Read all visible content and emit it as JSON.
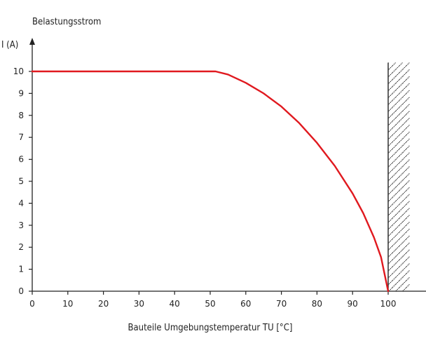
{
  "chart_data": {
    "type": "line",
    "title": "Belastungsstrom",
    "ylabel": "I (A)",
    "xlabel": "Bauteile Umgebungstemperatur TU [°C]",
    "xlim": [
      0,
      107
    ],
    "ylim": [
      0,
      10.7
    ],
    "x_ticks": [
      0,
      10,
      20,
      30,
      40,
      50,
      60,
      70,
      80,
      90,
      100
    ],
    "y_ticks": [
      0,
      1,
      2,
      3,
      4,
      5,
      6,
      7,
      8,
      9,
      10
    ],
    "grid": false,
    "series": [
      {
        "color": "#e0191f",
        "x": [
          0,
          51.5,
          55,
          60,
          65,
          70,
          75,
          80,
          85,
          90,
          93,
          96,
          98,
          100
        ],
        "y": [
          10,
          10,
          9.86,
          9.48,
          9.0,
          8.4,
          7.65,
          6.75,
          5.7,
          4.45,
          3.55,
          2.45,
          1.55,
          0
        ]
      }
    ],
    "hatched_region": {
      "x_start": 100,
      "x_end": 106,
      "color": "#222222"
    }
  }
}
